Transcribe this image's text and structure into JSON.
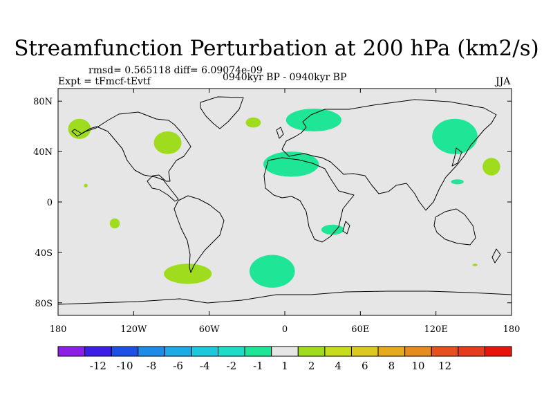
{
  "chart_data": {
    "type": "contour-map",
    "title": "Streamfunction Perturbation at 200 hPa (km2/s)",
    "stats_text": "rmsd= 0.565118 diff= 6.09074e-09",
    "experiment_text": "Expt = tFmcf-tEvtf",
    "period_text": "0940kyr BP - 0940kyr BP",
    "season": "JJA",
    "xlim": [
      -180,
      180
    ],
    "ylim": [
      -90,
      90
    ],
    "x_ticks": [
      {
        "value": -180,
        "label": "180"
      },
      {
        "value": -120,
        "label": "120W"
      },
      {
        "value": -60,
        "label": "60W"
      },
      {
        "value": 0,
        "label": "0"
      },
      {
        "value": 60,
        "label": "60E"
      },
      {
        "value": 120,
        "label": "120E"
      },
      {
        "value": 180,
        "label": "180"
      }
    ],
    "y_ticks": [
      {
        "value": 80,
        "label": "80N"
      },
      {
        "value": 40,
        "label": "40N"
      },
      {
        "value": 0,
        "label": "0"
      },
      {
        "value": -40,
        "label": "40S"
      },
      {
        "value": -80,
        "label": "80S"
      }
    ],
    "colorbar": {
      "colors": [
        "#8c1ee6",
        "#3c1ee6",
        "#1e50e6",
        "#1e8ce6",
        "#1eaae6",
        "#1ec8dc",
        "#1edcc8",
        "#1ee696",
        "#e6e6e6",
        "#a0dc1e",
        "#c8dc1e",
        "#dcc81e",
        "#e6aa1e",
        "#e68c1e",
        "#e6501e",
        "#e63c1e",
        "#e6140a"
      ],
      "levels": [
        -12,
        -10,
        -8,
        -6,
        -4,
        -2,
        -1,
        1,
        2,
        4,
        6,
        8,
        10,
        12
      ],
      "level_labels": [
        "-12",
        "-10",
        "-8",
        "-6",
        "-4",
        "-2",
        "-1",
        "1",
        "2",
        "4",
        "6",
        "8",
        "10",
        "12"
      ]
    },
    "anomalies": [
      {
        "name": "north-pacific-positive",
        "sign": "positive",
        "lon": -163,
        "lat": 58,
        "rlon": 9,
        "rlat": 8
      },
      {
        "name": "north-america-positive",
        "sign": "positive",
        "lon": -93,
        "lat": 47,
        "rlon": 11,
        "rlat": 9
      },
      {
        "name": "north-atlantic-positive",
        "sign": "positive",
        "lon": -25,
        "lat": 63,
        "rlon": 6,
        "rlat": 4
      },
      {
        "name": "europe-negative",
        "sign": "negative",
        "lon": 23,
        "lat": 65,
        "rlon": 22,
        "rlat": 9
      },
      {
        "name": "north-africa-negative",
        "sign": "negative",
        "lon": 5,
        "lat": 30,
        "rlon": 22,
        "rlat": 10
      },
      {
        "name": "east-asia-negative",
        "sign": "negative",
        "lon": 135,
        "lat": 52,
        "rlon": 18,
        "rlat": 14
      },
      {
        "name": "west-pacific-positive",
        "sign": "positive",
        "lon": 164,
        "lat": 28,
        "rlon": 7,
        "rlat": 7
      },
      {
        "name": "philippine-sea-negative",
        "sign": "negative",
        "lon": 137,
        "lat": 16,
        "rlon": 5,
        "rlat": 2
      },
      {
        "name": "hawaii-positive",
        "sign": "positive",
        "lon": -158,
        "lat": 13,
        "rlon": 1.5,
        "rlat": 1.5
      },
      {
        "name": "south-pacific-small-positive",
        "sign": "positive",
        "lon": -135,
        "lat": -17,
        "rlon": 4,
        "rlat": 4
      },
      {
        "name": "south-africa-negative",
        "sign": "negative",
        "lon": 38,
        "lat": -22,
        "rlon": 9,
        "rlat": 4
      },
      {
        "name": "south-america-positive",
        "sign": "positive",
        "lon": -77,
        "lat": -57,
        "rlon": 19,
        "rlat": 8
      },
      {
        "name": "south-atlantic-negative",
        "sign": "negative",
        "lon": -10,
        "lat": -55,
        "rlon": 18,
        "rlat": 13
      },
      {
        "name": "southwest-pacific-positive",
        "sign": "positive",
        "lon": 151,
        "lat": -50,
        "rlon": 2,
        "rlat": 1
      }
    ]
  }
}
